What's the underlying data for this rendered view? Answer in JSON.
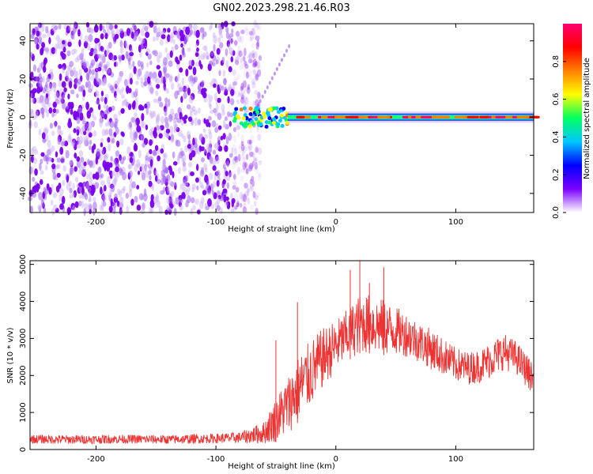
{
  "page_title": "GN02.2023.298.21.46.R03",
  "chart_data": [
    {
      "type": "heatmap",
      "xlabel": "Height of straight line (km)",
      "ylabel": "Frequency (Hz)",
      "xlim": [
        -255,
        165
      ],
      "ylim": [
        -50,
        49
      ],
      "x_ticks": [
        "-200",
        "-100",
        "0",
        "100"
      ],
      "y_ticks": [
        "40",
        "20",
        "0",
        "-20",
        "-40"
      ],
      "colorbar": {
        "label": "Normalized spectral amplitude",
        "range": [
          0.0,
          1.0
        ],
        "ticks": [
          "0.0",
          "0.2",
          "0.4",
          "0.6",
          "0.8"
        ],
        "colors": [
          "#ffffff",
          "#7a00ff",
          "#0000ff",
          "#00c8ff",
          "#00ff60",
          "#ffff00",
          "#ff8000",
          "#ff0000",
          "#ff0070"
        ]
      },
      "regions": [
        {
          "x_range": [
            -255,
            -75
          ],
          "y_range": [
            -50,
            49
          ],
          "amplitude": 0.2,
          "pattern": "noise"
        },
        {
          "x_range": [
            -85,
            -40
          ],
          "y_range": [
            -5,
            5
          ],
          "amplitude": 0.6,
          "pattern": "onset"
        },
        {
          "x_range": [
            -40,
            165
          ],
          "y_range": [
            -2,
            2
          ],
          "amplitude": 0.9,
          "pattern": "carrier"
        }
      ]
    },
    {
      "type": "line",
      "xlabel": "Height of straight line (km)",
      "ylabel": "SNR (10 * v/v)",
      "xlim": [
        -255,
        165
      ],
      "ylim": [
        0,
        5100
      ],
      "x_ticks": [
        "-200",
        "-100",
        "0",
        "100"
      ],
      "y_ticks": [
        "5000",
        "4000",
        "3000",
        "2000",
        "1000",
        "0"
      ],
      "series": [
        {
          "color": "#ee3333",
          "x": [
            -255,
            -220,
            -180,
            -140,
            -100,
            -80,
            -60,
            -50,
            -40,
            -30,
            -20,
            -10,
            0,
            10,
            20,
            30,
            40,
            50,
            60,
            70,
            80,
            90,
            100,
            110,
            120,
            130,
            140,
            150,
            160,
            165
          ],
          "y": [
            280,
            270,
            280,
            270,
            300,
            320,
            450,
            800,
            1200,
            1700,
            2100,
            2500,
            2800,
            3100,
            3400,
            3400,
            3300,
            3200,
            3100,
            2900,
            2700,
            2500,
            2300,
            2200,
            2250,
            2450,
            2650,
            2500,
            2100,
            1900
          ],
          "spread": [
            120,
            120,
            120,
            120,
            130,
            150,
            300,
            600,
            800,
            900,
            900,
            800,
            700,
            700,
            800,
            800,
            750,
            650,
            600,
            550,
            550,
            500,
            450,
            450,
            450,
            500,
            500,
            450,
            450,
            400
          ],
          "spikes": [
            {
              "x": -50,
              "y": 2950
            },
            {
              "x": -32,
              "y": 3980
            },
            {
              "x": 12,
              "y": 4850
            },
            {
              "x": 20,
              "y": 5100
            },
            {
              "x": 40,
              "y": 4920
            },
            {
              "x": 28,
              "y": 4500
            }
          ]
        }
      ]
    }
  ]
}
